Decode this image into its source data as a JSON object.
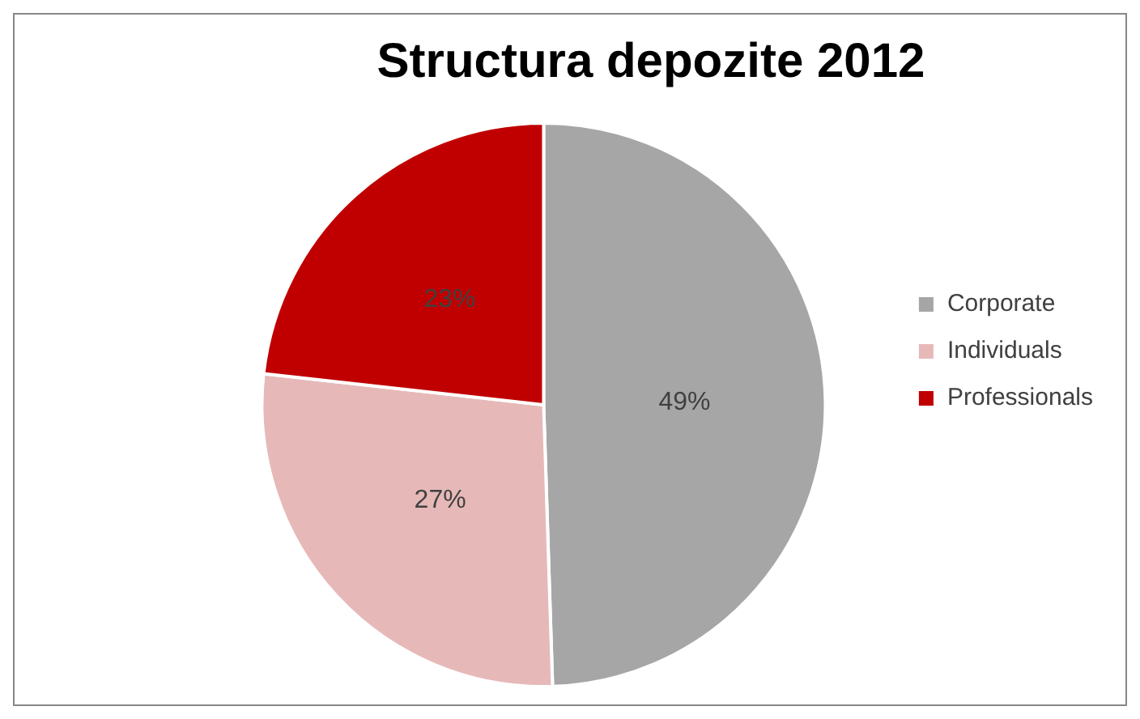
{
  "chart_data": {
    "type": "pie",
    "title": "Structura depozite 2012",
    "categories": [
      "Corporate",
      "Individuals",
      "Professionals"
    ],
    "values": [
      49,
      27,
      23
    ],
    "value_labels": [
      "49%",
      "27%",
      "23%"
    ],
    "colors": [
      "#a6a6a6",
      "#e6b9b8",
      "#c00000"
    ],
    "legend": "right"
  }
}
